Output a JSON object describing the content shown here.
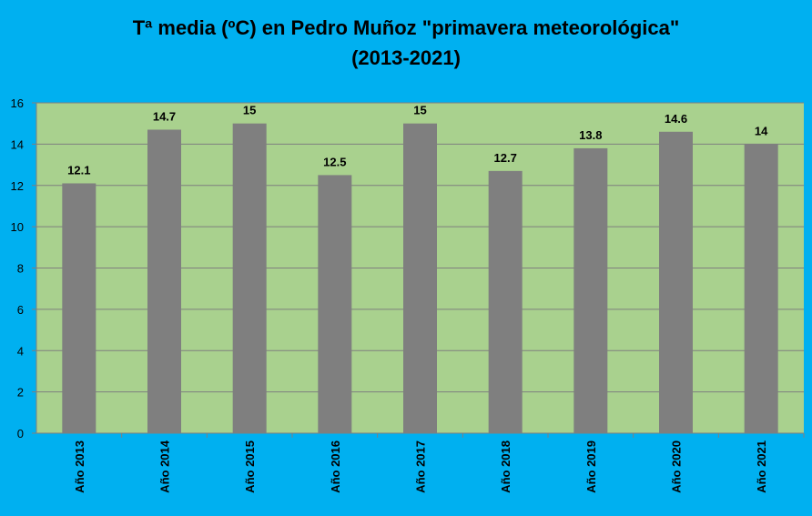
{
  "chart_data": {
    "type": "bar",
    "title": "Tª media (ºC)  en Pedro Muñoz \"primavera meteorológica\"",
    "subtitle": "(2013-2021)",
    "categories": [
      "Año 2013",
      "Año 2014",
      "Año 2015",
      "Año 2016",
      "Año 2017",
      "Año 2018",
      "Año 2019",
      "Año 2020",
      "Año 2021"
    ],
    "values": [
      12.1,
      14.7,
      15,
      12.5,
      15,
      12.7,
      13.8,
      14.6,
      14
    ],
    "data_labels": [
      "12.1",
      "14.7",
      "15",
      "12.5",
      "15",
      "12.7",
      "13.8",
      "14.6",
      "14"
    ],
    "xlabel": "",
    "ylabel": "",
    "ylim": [
      0,
      16
    ],
    "yticks": [
      0,
      2,
      4,
      6,
      8,
      10,
      12,
      14,
      16
    ],
    "grid": true,
    "legend": "none",
    "colors": {
      "background": "#00b0f0",
      "plot_area": "#a9d18e",
      "bar": "#7f7f7f",
      "grid": "#7f7f7f"
    }
  }
}
